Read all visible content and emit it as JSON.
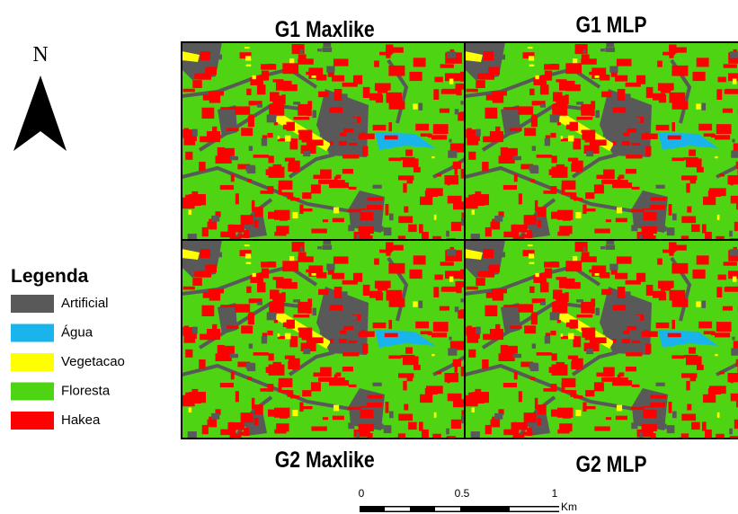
{
  "panels": [
    "G1  Maxlike",
    "G1 MLP",
    "G2 Maxlike",
    "G2 MLP"
  ],
  "north": "N",
  "legend": {
    "title": "Legenda",
    "items": [
      {
        "label": "Artificial",
        "color": "#595959"
      },
      {
        "label": "Água",
        "color": "#1ab4ec"
      },
      {
        "label": "Vegetacao",
        "color": "#ffff00"
      },
      {
        "label": "Floresta",
        "color": "#4fd414"
      },
      {
        "label": "Hakea",
        "color": "#ff0000"
      }
    ]
  },
  "scale": {
    "labels": [
      "0",
      "0.5",
      "1"
    ],
    "unit": "Km"
  }
}
